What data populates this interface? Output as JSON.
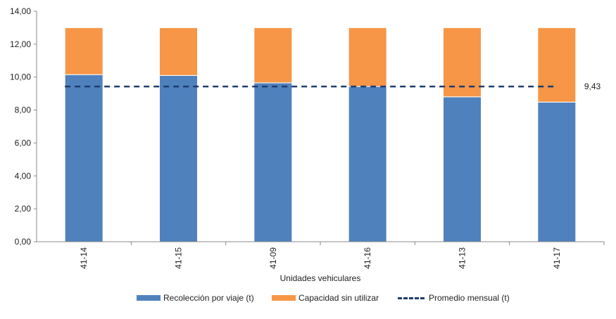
{
  "chart_data": {
    "type": "bar",
    "stacked": true,
    "categories": [
      "41-14",
      "41-15",
      "41-09",
      "41-16",
      "41-13",
      "41-17"
    ],
    "series": [
      {
        "name": "Recolección por viaje (t)",
        "values": [
          10.15,
          10.1,
          9.65,
          9.43,
          8.8,
          8.48
        ],
        "color": "#4f81bd"
      },
      {
        "name": "Capacidad sin utilizar",
        "values": [
          2.85,
          2.9,
          3.35,
          3.57,
          4.2,
          4.52
        ],
        "color": "#f79646"
      }
    ],
    "reference_line": {
      "name": "Promedio mensual (t)",
      "value": 9.43,
      "label": "9,43",
      "color": "#1f3d6e",
      "style": "dashed"
    },
    "xlabel": "Unidades vehiculares",
    "ylabel": "",
    "ylim": [
      0,
      14
    ],
    "yticks": [
      "0,00",
      "2,00",
      "4,00",
      "6,00",
      "8,00",
      "10,00",
      "12,00",
      "14,00"
    ],
    "grid": false,
    "legend_position": "bottom"
  }
}
